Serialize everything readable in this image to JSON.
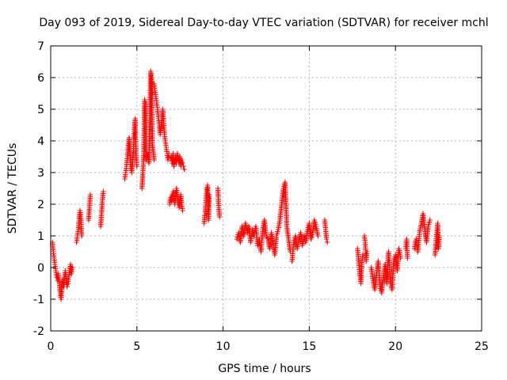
{
  "chart_data": {
    "type": "scatter",
    "title": "Day 093 of 2019, Sidereal Day-to-day VTEC variation (SDTVAR) for receiver mchl",
    "xlabel": "GPS time / hours",
    "ylabel": "SDTVAR / TECUs",
    "xlim": [
      0,
      25
    ],
    "ylim": [
      -2,
      7
    ],
    "xticks": [
      "0",
      "5",
      "10",
      "15",
      "20",
      "25"
    ],
    "yticks": [
      "-2",
      "-1",
      "0",
      "1",
      "2",
      "3",
      "4",
      "5",
      "6",
      "7"
    ],
    "grid": true,
    "marker": "+",
    "color": "#ff0000",
    "segments": [
      [
        [
          0.1,
          0.8
        ],
        [
          0.15,
          0.5
        ],
        [
          0.2,
          0.3
        ],
        [
          0.25,
          0.1
        ],
        [
          0.3,
          -0.1
        ],
        [
          0.35,
          -0.3
        ],
        [
          0.4,
          -0.4
        ],
        [
          0.45,
          -0.2
        ],
        [
          0.5,
          -0.5
        ],
        [
          0.55,
          -0.8
        ],
        [
          0.6,
          -1.0
        ],
        [
          0.65,
          -0.7
        ],
        [
          0.7,
          -0.4
        ],
        [
          0.75,
          -0.6
        ],
        [
          0.8,
          -0.3
        ],
        [
          0.85,
          -0.1
        ],
        [
          0.9,
          -0.4
        ],
        [
          0.95,
          -0.6
        ],
        [
          1.0,
          -0.5
        ],
        [
          1.05,
          -0.3
        ],
        [
          1.1,
          -0.1
        ],
        [
          1.15,
          0.1
        ],
        [
          1.2,
          -0.2
        ],
        [
          1.25,
          0.0
        ]
      ],
      [
        [
          1.5,
          0.8
        ],
        [
          1.55,
          1.0
        ],
        [
          1.6,
          1.2
        ],
        [
          1.65,
          1.5
        ],
        [
          1.7,
          1.8
        ],
        [
          1.75,
          1.6
        ],
        [
          1.8,
          1.0
        ]
      ],
      [
        [
          2.2,
          1.5
        ],
        [
          2.25,
          1.9
        ],
        [
          2.3,
          2.3
        ]
      ],
      [
        [
          2.9,
          1.3
        ],
        [
          2.95,
          1.7
        ],
        [
          3.0,
          2.1
        ],
        [
          3.05,
          2.4
        ]
      ],
      [
        [
          4.3,
          2.8
        ],
        [
          4.35,
          3.0
        ],
        [
          4.4,
          3.2
        ],
        [
          4.45,
          3.5
        ],
        [
          4.5,
          3.8
        ],
        [
          4.55,
          4.1
        ],
        [
          4.6,
          3.6
        ],
        [
          4.65,
          3.2
        ],
        [
          4.7,
          3.0
        ],
        [
          4.75,
          3.3
        ],
        [
          4.8,
          3.7
        ],
        [
          4.85,
          4.3
        ],
        [
          4.9,
          4.7
        ],
        [
          4.95,
          3.6
        ],
        [
          5.0,
          3.2
        ]
      ],
      [
        [
          5.3,
          2.5
        ],
        [
          5.35,
          3.0
        ],
        [
          5.4,
          3.6
        ],
        [
          5.45,
          5.3
        ],
        [
          5.5,
          5.2
        ],
        [
          5.55,
          3.4
        ]
      ],
      [
        [
          5.6,
          3.6
        ],
        [
          5.7,
          3.3
        ],
        [
          5.8,
          6.2
        ],
        [
          5.85,
          6.0
        ],
        [
          5.9,
          3.9
        ],
        [
          6.0,
          3.4
        ]
      ],
      [
        [
          6.0,
          5.8
        ],
        [
          6.05,
          5.6
        ],
        [
          6.1,
          5.4
        ],
        [
          6.15,
          5.2
        ],
        [
          6.2,
          5.0
        ],
        [
          6.25,
          4.7
        ],
        [
          6.3,
          4.5
        ],
        [
          6.35,
          4.2
        ],
        [
          6.4,
          4.4
        ],
        [
          6.45,
          4.7
        ],
        [
          6.5,
          5.0
        ],
        [
          6.55,
          4.6
        ],
        [
          6.6,
          4.2
        ],
        [
          6.65,
          4.0
        ],
        [
          6.7,
          3.8
        ],
        [
          6.75,
          3.6
        ],
        [
          6.8,
          3.4
        ],
        [
          6.85,
          3.6
        ]
      ],
      [
        [
          6.9,
          2.0
        ],
        [
          6.95,
          2.2
        ],
        [
          7.0,
          2.1
        ],
        [
          7.05,
          2.3
        ],
        [
          7.1,
          2.4
        ],
        [
          7.15,
          2.2
        ],
        [
          7.2,
          2.0
        ],
        [
          7.25,
          2.3
        ],
        [
          7.3,
          2.5
        ],
        [
          7.35,
          2.2
        ],
        [
          7.4,
          2.0
        ],
        [
          7.45,
          1.9
        ],
        [
          7.5,
          2.1
        ],
        [
          7.55,
          2.3
        ],
        [
          7.6,
          2.0
        ],
        [
          7.65,
          1.8
        ]
      ],
      [
        [
          7.0,
          3.5
        ],
        [
          7.05,
          3.3
        ],
        [
          7.1,
          3.6
        ],
        [
          7.15,
          3.2
        ],
        [
          7.2,
          3.4
        ],
        [
          7.25,
          3.5
        ],
        [
          7.3,
          3.3
        ],
        [
          7.35,
          3.6
        ],
        [
          7.4,
          3.4
        ],
        [
          7.45,
          3.3
        ],
        [
          7.5,
          3.5
        ],
        [
          7.55,
          3.2
        ],
        [
          7.6,
          3.4
        ],
        [
          7.65,
          3.3
        ],
        [
          7.7,
          3.2
        ],
        [
          7.75,
          3.1
        ]
      ],
      [
        [
          8.9,
          1.4
        ],
        [
          8.95,
          1.7
        ],
        [
          9.0,
          2.0
        ],
        [
          9.05,
          2.4
        ],
        [
          9.1,
          2.6
        ],
        [
          9.15,
          1.5
        ],
        [
          9.2,
          2.3
        ]
      ],
      [
        [
          9.7,
          2.5
        ],
        [
          9.75,
          1.9
        ],
        [
          9.8,
          1.6
        ]
      ],
      [
        [
          10.8,
          0.9
        ],
        [
          10.9,
          1.1
        ],
        [
          11.0,
          0.8
        ],
        [
          11.1,
          1.3
        ],
        [
          11.2,
          1.0
        ],
        [
          11.3,
          1.4
        ],
        [
          11.4,
          1.1
        ],
        [
          11.5,
          1.3
        ],
        [
          11.6,
          0.8
        ],
        [
          11.7,
          1.2
        ],
        [
          11.8,
          1.0
        ],
        [
          11.9,
          1.3
        ],
        [
          12.0,
          0.7
        ],
        [
          12.1,
          0.9
        ],
        [
          12.2,
          0.5
        ],
        [
          12.3,
          1.2
        ],
        [
          12.4,
          1.5
        ],
        [
          12.5,
          1.0
        ],
        [
          12.6,
          0.9
        ],
        [
          12.7,
          0.6
        ],
        [
          12.8,
          1.1
        ],
        [
          12.9,
          0.8
        ],
        [
          13.0,
          0.4
        ],
        [
          13.1,
          1.0
        ],
        [
          13.2,
          1.2
        ],
        [
          13.3,
          1.5
        ],
        [
          13.4,
          2.0
        ],
        [
          13.5,
          2.5
        ],
        [
          13.6,
          2.7
        ],
        [
          13.7,
          1.3
        ],
        [
          13.8,
          0.9
        ],
        [
          13.9,
          0.5
        ]
      ],
      [
        [
          14.0,
          0.2
        ],
        [
          14.1,
          0.8
        ],
        [
          14.2,
          1.0
        ],
        [
          14.3,
          0.6
        ],
        [
          14.4,
          0.9
        ],
        [
          14.5,
          1.1
        ],
        [
          14.6,
          0.7
        ],
        [
          14.7,
          1.0
        ],
        [
          14.8,
          0.8
        ],
        [
          14.9,
          1.2
        ],
        [
          15.0,
          1.4
        ],
        [
          15.1,
          0.9
        ],
        [
          15.2,
          1.1
        ],
        [
          15.3,
          1.5
        ],
        [
          15.4,
          1.3
        ],
        [
          15.5,
          1.0
        ]
      ],
      [
        [
          15.9,
          1.5
        ],
        [
          15.95,
          1.2
        ],
        [
          16.0,
          0.9
        ],
        [
          16.05,
          0.8
        ]
      ],
      [
        [
          17.8,
          0.6
        ],
        [
          17.85,
          0.3
        ],
        [
          17.9,
          0.0
        ],
        [
          17.95,
          -0.3
        ],
        [
          18.0,
          -0.5
        ],
        [
          18.05,
          0.1
        ],
        [
          18.1,
          0.4
        ]
      ],
      [
        [
          18.2,
          1.0
        ],
        [
          18.25,
          0.8
        ],
        [
          18.3,
          0.2
        ],
        [
          18.35,
          0.5
        ]
      ],
      [
        [
          18.6,
          0.0
        ],
        [
          18.7,
          -0.4
        ],
        [
          18.8,
          -0.7
        ],
        [
          18.9,
          -0.2
        ],
        [
          19.0,
          0.2
        ],
        [
          19.1,
          -0.6
        ],
        [
          19.2,
          -0.8
        ],
        [
          19.3,
          -0.3
        ],
        [
          19.4,
          0.1
        ],
        [
          19.5,
          -0.5
        ],
        [
          19.6,
          0.5
        ],
        [
          19.7,
          -0.4
        ],
        [
          19.8,
          -0.7
        ],
        [
          19.9,
          0.2
        ],
        [
          20.0,
          0.4
        ],
        [
          20.1,
          -0.1
        ],
        [
          20.2,
          0.6
        ],
        [
          20.3,
          0.3
        ]
      ],
      [
        [
          20.6,
          0.6
        ],
        [
          20.65,
          0.9
        ],
        [
          20.7,
          0.3
        ]
      ],
      [
        [
          21.1,
          0.6
        ],
        [
          21.2,
          0.9
        ],
        [
          21.3,
          0.5
        ],
        [
          21.4,
          1.1
        ],
        [
          21.5,
          1.4
        ],
        [
          21.6,
          1.7
        ],
        [
          21.7,
          1.2
        ],
        [
          21.8,
          0.8
        ],
        [
          21.9,
          1.3
        ],
        [
          22.0,
          1.5
        ]
      ],
      [
        [
          22.3,
          0.4
        ],
        [
          22.35,
          0.8
        ],
        [
          22.4,
          1.1
        ],
        [
          22.45,
          1.4
        ],
        [
          22.5,
          0.6
        ],
        [
          22.55,
          1.0
        ]
      ]
    ]
  }
}
